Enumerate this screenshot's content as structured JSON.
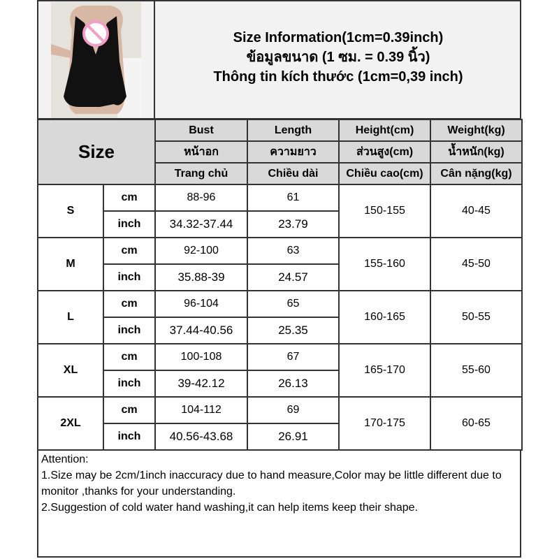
{
  "header": {
    "titles": [
      "Size Information(1cm=0.39inch)",
      "ข้อมูลขนาด (1 ซม. = 0.39 นิ้ว)",
      "Thông tin kích thước (1cm=0,39 inch)"
    ]
  },
  "product_image": {
    "description_icon": "censor-icon",
    "censor_color": "#f29fc8"
  },
  "table": {
    "size_label": "Size",
    "columns": [
      {
        "en": "Bust",
        "th": "หน้าอก",
        "vi": "Trang chủ"
      },
      {
        "en": "Length",
        "th": "ความยาว",
        "vi": "Chiều dài"
      },
      {
        "en": "Height(cm)",
        "th": "ส่วนสูง(cm)",
        "vi": "Chiều cao(cm)"
      },
      {
        "en": "Weight(kg)",
        "th": "น้ำหนัก(kg)",
        "vi": "Cân nặng(kg)"
      }
    ],
    "unit_cm": "cm",
    "unit_inch": "inch",
    "rows": [
      {
        "size": "S",
        "bust_cm": "88-96",
        "length_cm": "61",
        "bust_in": "34.32-37.44",
        "length_in": "23.79",
        "height": "150-155",
        "weight": "40-45"
      },
      {
        "size": "M",
        "bust_cm": "92-100",
        "length_cm": "63",
        "bust_in": "35.88-39",
        "length_in": "24.57",
        "height": "155-160",
        "weight": "45-50"
      },
      {
        "size": "L",
        "bust_cm": "96-104",
        "length_cm": "65",
        "bust_in": "37.44-40.56",
        "length_in": "25.35",
        "height": "160-165",
        "weight": "50-55"
      },
      {
        "size": "XL",
        "bust_cm": "100-108",
        "length_cm": "67",
        "bust_in": "39-42.12",
        "length_in": "26.13",
        "height": "165-170",
        "weight": "55-60"
      },
      {
        "size": "2XL",
        "bust_cm": "104-112",
        "length_cm": "69",
        "bust_in": "40.56-43.68",
        "length_in": "26.91",
        "height": "170-175",
        "weight": "60-65"
      }
    ]
  },
  "attention": {
    "title": "Attention:",
    "lines": [
      "1.Size may be 2cm/1inch inaccuracy due to hand measure,Color may be little different due to monitor ,thanks for your understanding.",
      "2.Suggestion of cold water hand washing,it can help items keep their shape."
    ]
  }
}
